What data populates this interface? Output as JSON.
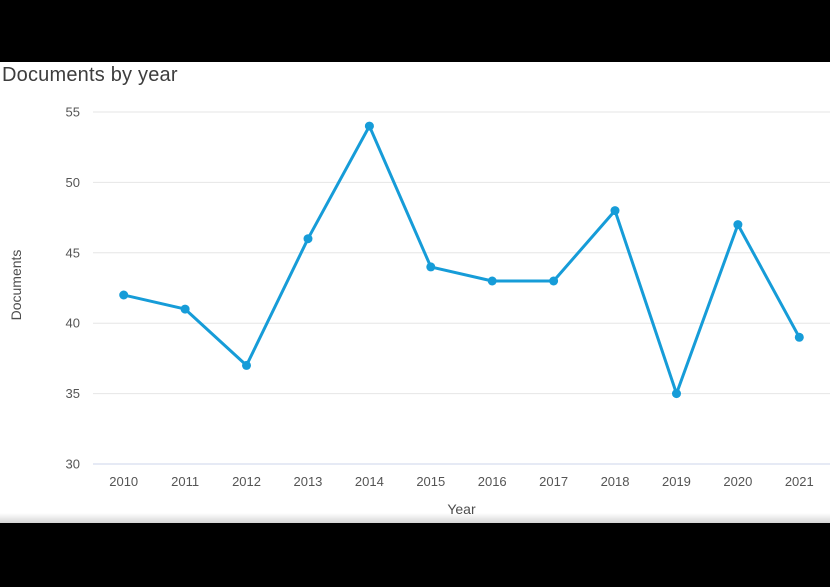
{
  "page": {
    "background_color": "#000000",
    "card_background_color": "#ffffff"
  },
  "chart": {
    "title": "Documents by year"
  },
  "chart_data": {
    "type": "line",
    "title": "Documents by year",
    "categories": [
      "2010",
      "2011",
      "2012",
      "2013",
      "2014",
      "2015",
      "2016",
      "2017",
      "2018",
      "2019",
      "2020",
      "2021"
    ],
    "series": [
      {
        "name": "Documents",
        "values": [
          42,
          41,
          37,
          46,
          54,
          44,
          43,
          43,
          48,
          35,
          47,
          39
        ]
      }
    ],
    "xlabel": "Year",
    "ylabel": "Documents",
    "ylim": [
      30,
      55
    ],
    "ytick_step": 5,
    "grid": true,
    "legend": "none",
    "colors": {
      "line": "#169cd8",
      "marker": "#169cd8",
      "gridline": "#e6e6e6",
      "axis_line": "#ccd6eb",
      "tick_label": "#555555",
      "axis_title": "#4d4d4d",
      "title": "#3d3d3d"
    },
    "marker_radius": 4.5,
    "line_width": 3
  }
}
